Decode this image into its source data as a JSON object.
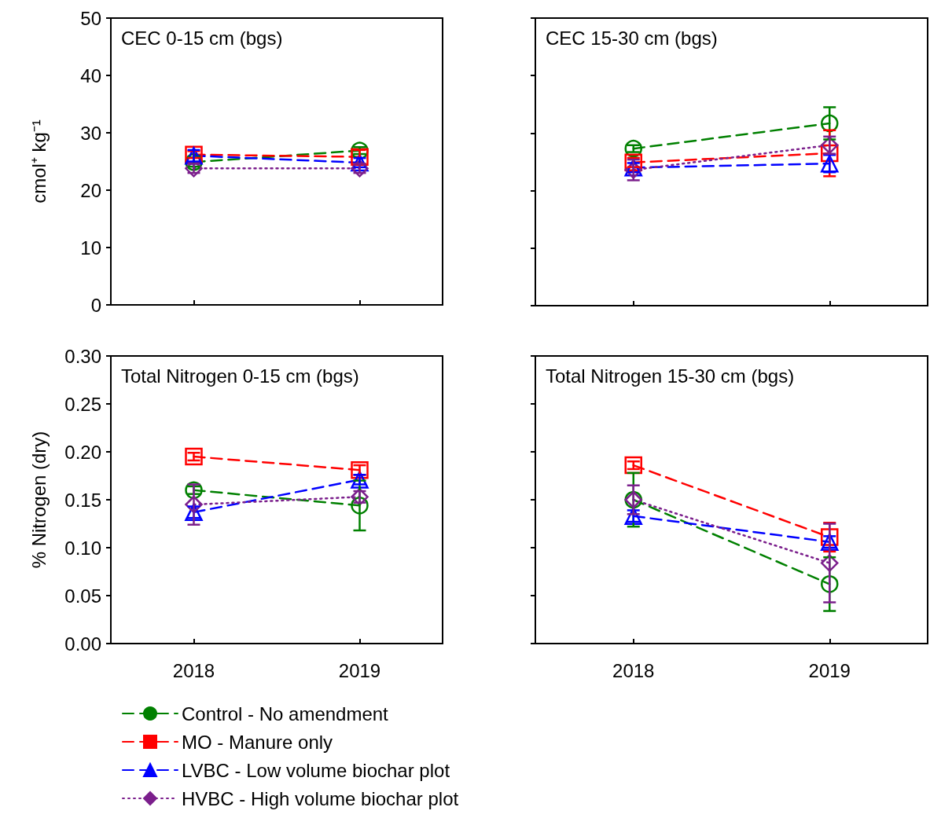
{
  "chart_data": [
    {
      "type": "line",
      "title": "CEC 0-15 cm (bgs)",
      "ylabel": "cmol⁺ kg⁻¹",
      "categories": [
        "2018",
        "2019"
      ],
      "ylim": [
        0,
        50
      ],
      "yticks": [
        0,
        10,
        20,
        30,
        40,
        50
      ],
      "tick_labels": "y",
      "legend": false,
      "series": [
        {
          "color": "#008000",
          "marker": "circle",
          "line_style": "dashed",
          "values": [
            24.9,
            26.9
          ],
          "errors": [
            0.8,
            0.6
          ]
        },
        {
          "color": "#ff0000",
          "marker": "square",
          "line_style": "dashed",
          "values": [
            26.2,
            25.8
          ],
          "errors": [
            0.6,
            1.2
          ]
        },
        {
          "color": "#0000ff",
          "marker": "triangle",
          "line_style": "dashed",
          "values": [
            26,
            24.8
          ],
          "errors": [
            1,
            0.8
          ]
        },
        {
          "color": "#7b1f8c",
          "marker": "diamond",
          "line_style": "dotted",
          "values": [
            23.8,
            23.8
          ],
          "errors": [
            0.8,
            0.8
          ]
        }
      ]
    },
    {
      "type": "line",
      "title": "CEC 15-30 cm (bgs)",
      "categories": [
        "2018",
        "2019"
      ],
      "ylim": [
        0,
        50
      ],
      "yticks": [
        {
          "value": 0,
          "label": null
        },
        {
          "value": 10,
          "label": null
        },
        {
          "value": 20,
          "label": null
        },
        {
          "value": 30,
          "label": null
        },
        {
          "value": 40,
          "label": null
        },
        {
          "value": 50,
          "label": null
        }
      ],
      "tick_labels": false,
      "legend": false,
      "series": [
        {
          "color": "#008000",
          "marker": "circle",
          "line_style": "dashed",
          "values": [
            27.3,
            31.7
          ],
          "errors": [
            0.6,
            2.8
          ]
        },
        {
          "color": "#ff0000",
          "marker": "square",
          "line_style": "dashed",
          "values": [
            24.9,
            26.5
          ],
          "errors": [
            0.8,
            4
          ]
        },
        {
          "color": "#0000ff",
          "marker": "triangle",
          "line_style": "dashed",
          "values": [
            24,
            24.7
          ],
          "errors": [
            0.8,
            1.5
          ]
        },
        {
          "color": "#7b1f8c",
          "marker": "diamond",
          "line_style": "dotted",
          "values": [
            23.6,
            27.9
          ],
          "errors": [
            1.8,
            1.5
          ]
        }
      ]
    },
    {
      "type": "line",
      "title": "Total Nitrogen 0-15 cm (bgs)",
      "ylabel": "% Nitrogen (dry)",
      "categories": [
        "2018",
        "2019"
      ],
      "ylim": [
        0,
        0.3
      ],
      "yticks": [
        {
          "value": 0,
          "label": "0.00"
        },
        {
          "value": 0.05,
          "label": "0.05"
        },
        {
          "value": 0.1,
          "label": "0.10"
        },
        {
          "value": 0.15,
          "label": "0.15"
        },
        {
          "value": 0.2,
          "label": "0.20"
        },
        {
          "value": 0.25,
          "label": "0.25"
        },
        {
          "value": 0.3,
          "label": "0.30"
        }
      ],
      "legend": "bottom",
      "series": [
        {
          "name": "Control - No amendment",
          "color": "#008000",
          "marker": "circle",
          "line_style": "dashed",
          "values": [
            0.16,
            0.144
          ],
          "errors": [
            0.004,
            0.026
          ]
        },
        {
          "name": "MO - Manure only",
          "color": "#ff0000",
          "marker": "square",
          "line_style": "dashed",
          "values": [
            0.195,
            0.181
          ],
          "errors": [
            0.004,
            0.005
          ]
        },
        {
          "name": "LVBC - Low volume biochar plot",
          "color": "#0000ff",
          "marker": "triangle",
          "line_style": "dashed",
          "values": [
            0.137,
            0.171
          ],
          "errors": [
            0.006,
            0.005
          ]
        },
        {
          "name": "HVBC - High volume biochar plot",
          "color": "#7b1f8c",
          "marker": "diamond",
          "line_style": "dotted",
          "values": [
            0.145,
            0.153
          ],
          "errors": [
            0.021,
            0.006
          ]
        }
      ]
    },
    {
      "type": "line",
      "title": "Total Nitrogen 15-30 cm (bgs)",
      "categories": [
        "2018",
        "2019"
      ],
      "ylim": [
        0,
        0.3
      ],
      "yticks": [
        {
          "value": 0,
          "label": null
        },
        {
          "value": 0.05,
          "label": null
        },
        {
          "value": 0.1,
          "label": null
        },
        {
          "value": 0.15,
          "label": null
        },
        {
          "value": 0.2,
          "label": null
        },
        {
          "value": 0.25,
          "label": null
        },
        {
          "value": 0.3,
          "label": null
        }
      ],
      "tick_labels": "x",
      "legend": false,
      "series": [
        {
          "color": "#008000",
          "marker": "circle",
          "line_style": "dashed",
          "values": [
            0.15,
            0.062
          ],
          "errors": [
            0.028,
            0.028
          ]
        },
        {
          "color": "#ff0000",
          "marker": "square",
          "line_style": "dashed",
          "values": [
            0.186,
            0.111
          ],
          "errors": [
            0.004,
            0.015
          ]
        },
        {
          "color": "#0000ff",
          "marker": "triangle",
          "line_style": "dashed",
          "values": [
            0.133,
            0.106
          ],
          "errors": [
            0.006,
            0.006
          ]
        },
        {
          "color": "#7b1f8c",
          "marker": "diamond",
          "line_style": "dotted",
          "values": [
            0.15,
            0.084
          ],
          "errors": [
            0.015,
            0.041
          ]
        }
      ]
    }
  ]
}
